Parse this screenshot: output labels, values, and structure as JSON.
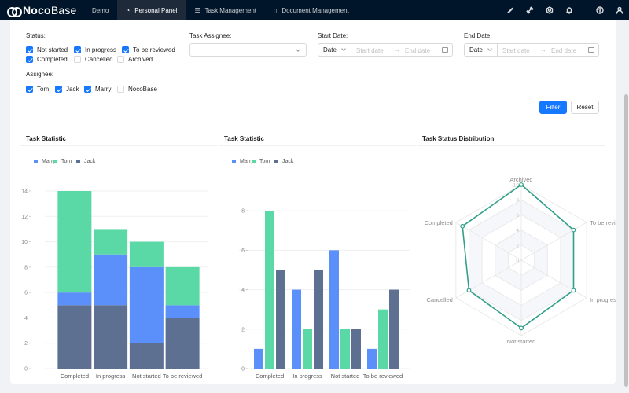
{
  "topbar": {
    "logo": {
      "bold": "Noco",
      "light": "Base"
    },
    "menu": [
      {
        "label": "Demo",
        "icon": ""
      },
      {
        "label": "Personal Panel",
        "icon": "◔"
      },
      {
        "label": "Task Management",
        "icon": "☰"
      },
      {
        "label": "Document Management",
        "icon": "▯"
      }
    ],
    "active_menu": "Personal Panel",
    "right_icons": [
      "paint-brush-icon",
      "plugin-icon",
      "settings-icon",
      "notification-bell-icon",
      "help-icon",
      "user-avatar-icon"
    ]
  },
  "filters": {
    "status": {
      "label": "Status:",
      "options": [
        {
          "label": "Not started",
          "checked": true
        },
        {
          "label": "In progress",
          "checked": true
        },
        {
          "label": "To be reviewed",
          "checked": true
        },
        {
          "label": "Completed",
          "checked": true
        },
        {
          "label": "Cancelled",
          "checked": false
        },
        {
          "label": "Archived",
          "checked": false
        }
      ]
    },
    "task_assignee": {
      "label": "Task Assignee:",
      "value": ""
    },
    "start_date": {
      "label": "Start Date:",
      "type": "Date",
      "start_placeholder": "Start date",
      "end_placeholder": "End date"
    },
    "end_date": {
      "label": "End Date:",
      "type": "Date",
      "start_placeholder": "Start date",
      "end_placeholder": "End date"
    },
    "assignee": {
      "label": "Assignee:",
      "options": [
        {
          "label": "Tom",
          "checked": true
        },
        {
          "label": "Jack",
          "checked": true
        },
        {
          "label": "Marry",
          "checked": true
        },
        {
          "label": "NocoBase",
          "checked": false
        }
      ]
    },
    "filter_button": "Filter",
    "reset_button": "Reset"
  },
  "colors": {
    "Marry": "#5b8ff9",
    "Tom": "#5ad8a6",
    "Jack": "#5d7092",
    "radar": "#30a08a"
  },
  "chart_data": [
    {
      "type": "bar",
      "title": "Task Statistic",
      "stacked": true,
      "categories": [
        "Completed",
        "In progress",
        "Not started",
        "To be reviewed"
      ],
      "legend": [
        "Marry",
        "Tom",
        "Jack"
      ],
      "ylim": [
        0,
        14
      ],
      "yticks": [
        0,
        2,
        4,
        6,
        8,
        10,
        12,
        14
      ],
      "series": [
        {
          "name": "Jack",
          "values": [
            5,
            5,
            2,
            4
          ]
        },
        {
          "name": "Marry",
          "values": [
            1,
            4,
            6,
            1
          ]
        },
        {
          "name": "Tom",
          "values": [
            8,
            2,
            2,
            3
          ]
        }
      ]
    },
    {
      "type": "bar",
      "title": "Task Statistic",
      "stacked": false,
      "categories": [
        "Completed",
        "In progress",
        "Not started",
        "To be reviewed"
      ],
      "legend": [
        "Marry",
        "Tom",
        "Jack"
      ],
      "ylim": [
        0,
        9
      ],
      "yticks": [
        0,
        2,
        4,
        6,
        8
      ],
      "series": [
        {
          "name": "Marry",
          "values": [
            1,
            4,
            6,
            1
          ]
        },
        {
          "name": "Tom",
          "values": [
            8,
            2,
            2,
            3
          ]
        },
        {
          "name": "Jack",
          "values": [
            5,
            5,
            2,
            4
          ]
        }
      ]
    },
    {
      "type": "radar",
      "title": "Task Status Distribution",
      "axes": [
        "Archived",
        "To be reviewed",
        "In progress",
        "Not started",
        "Cancelled",
        "Completed"
      ],
      "axis_labels_shown": [
        "Archived",
        "To be re",
        "In progr",
        "Not started",
        "Cancelled",
        "Completed"
      ],
      "values": [
        10,
        8,
        8,
        9,
        8,
        9
      ],
      "rlim": [
        0,
        10
      ],
      "rticks": [
        0,
        2,
        4,
        6,
        8,
        10
      ]
    }
  ]
}
